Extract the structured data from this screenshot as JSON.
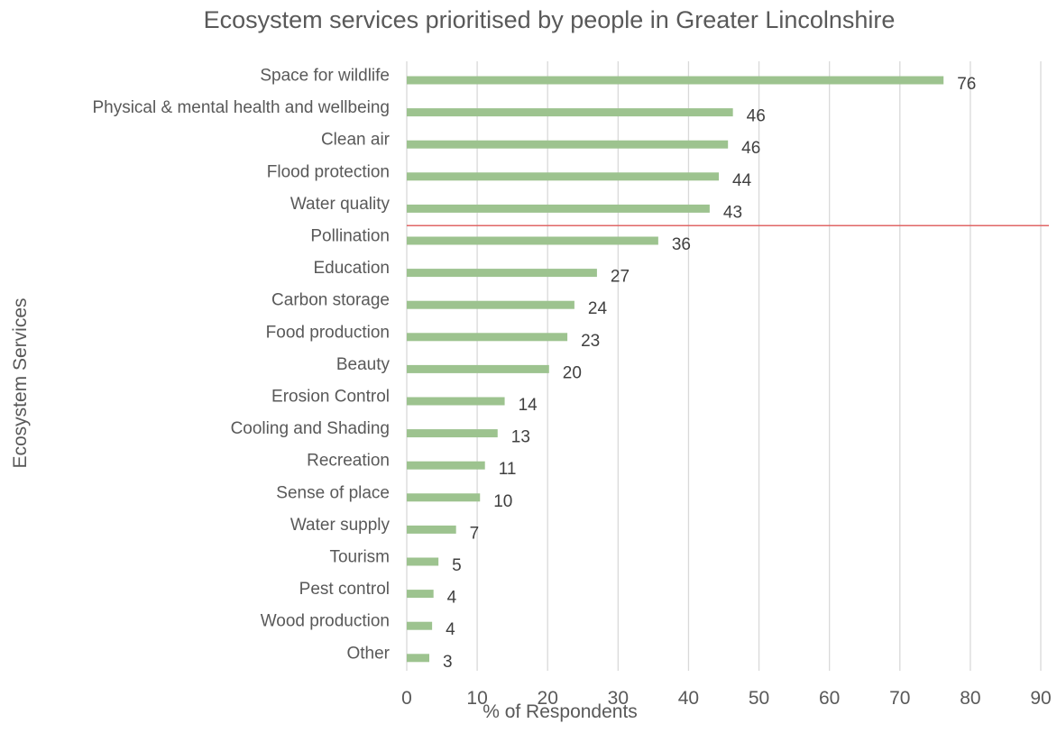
{
  "chart_data": {
    "type": "bar",
    "orientation": "horizontal",
    "title": "Ecosystem services prioritised by people in Greater Lincolnshire",
    "xlabel": "% of Respondents",
    "ylabel": "Ecosystem Services",
    "xlim": [
      0,
      90
    ],
    "xticks": [
      "0",
      "10",
      "20",
      "30",
      "40",
      "50",
      "60",
      "70",
      "80",
      "90"
    ],
    "grid": "vertical",
    "categories": [
      "Space for wildlife",
      "Physical & mental health and wellbeing",
      "Clean air",
      "Flood protection",
      "Water quality",
      "Pollination",
      "Education",
      "Carbon storage",
      "Food production",
      "Beauty",
      "Erosion Control",
      "Cooling and Shading",
      "Recreation",
      "Sense of place",
      "Water supply",
      "Tourism",
      "Pest control",
      "Wood production",
      "Other"
    ],
    "values": [
      76.2,
      46.3,
      45.6,
      44.3,
      43.0,
      35.7,
      27.0,
      23.8,
      22.8,
      20.2,
      13.9,
      12.9,
      11.1,
      10.4,
      7.0,
      4.5,
      3.8,
      3.6,
      3.2
    ],
    "data_labels": [
      "76",
      "46",
      "46",
      "44",
      "43",
      "36",
      "27",
      "24",
      "23",
      "20",
      "14",
      "13",
      "11",
      "10",
      "7",
      "5",
      "4",
      "4",
      "3"
    ],
    "reference_line": {
      "after_category": "Water quality",
      "color": "#e06666"
    },
    "colors": {
      "bar": "#9dc38f",
      "grid": "#d9d9d9",
      "text": "#595959",
      "reference": "#e06666"
    }
  }
}
